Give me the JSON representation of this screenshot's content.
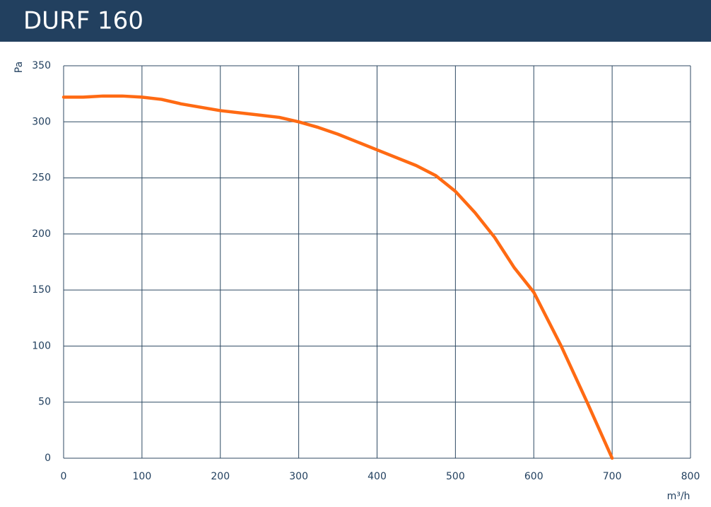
{
  "chart_data": {
    "type": "line",
    "title": "DURF 160",
    "y_label": "Pa",
    "x_label": "m³/h",
    "x": [
      0,
      25,
      50,
      75,
      100,
      125,
      150,
      200,
      250,
      275,
      300,
      325,
      350,
      400,
      450,
      475,
      500,
      525,
      550,
      575,
      600,
      635,
      668,
      700
    ],
    "series": [
      {
        "name": "DURF 160",
        "color": "#ff6a13",
        "values": [
          322,
          322,
          323,
          323,
          322,
          320,
          316,
          310,
          306,
          304,
          300,
          295,
          289,
          275,
          261,
          252,
          238,
          219,
          197,
          170,
          148,
          100,
          50,
          0
        ]
      }
    ],
    "xlim": [
      0,
      800
    ],
    "xticks": [
      0,
      100,
      200,
      300,
      400,
      500,
      600,
      700,
      800
    ],
    "ylim": [
      0,
      350
    ],
    "yticks": [
      0,
      50,
      100,
      150,
      200,
      250,
      300,
      350
    ],
    "grid": true
  }
}
